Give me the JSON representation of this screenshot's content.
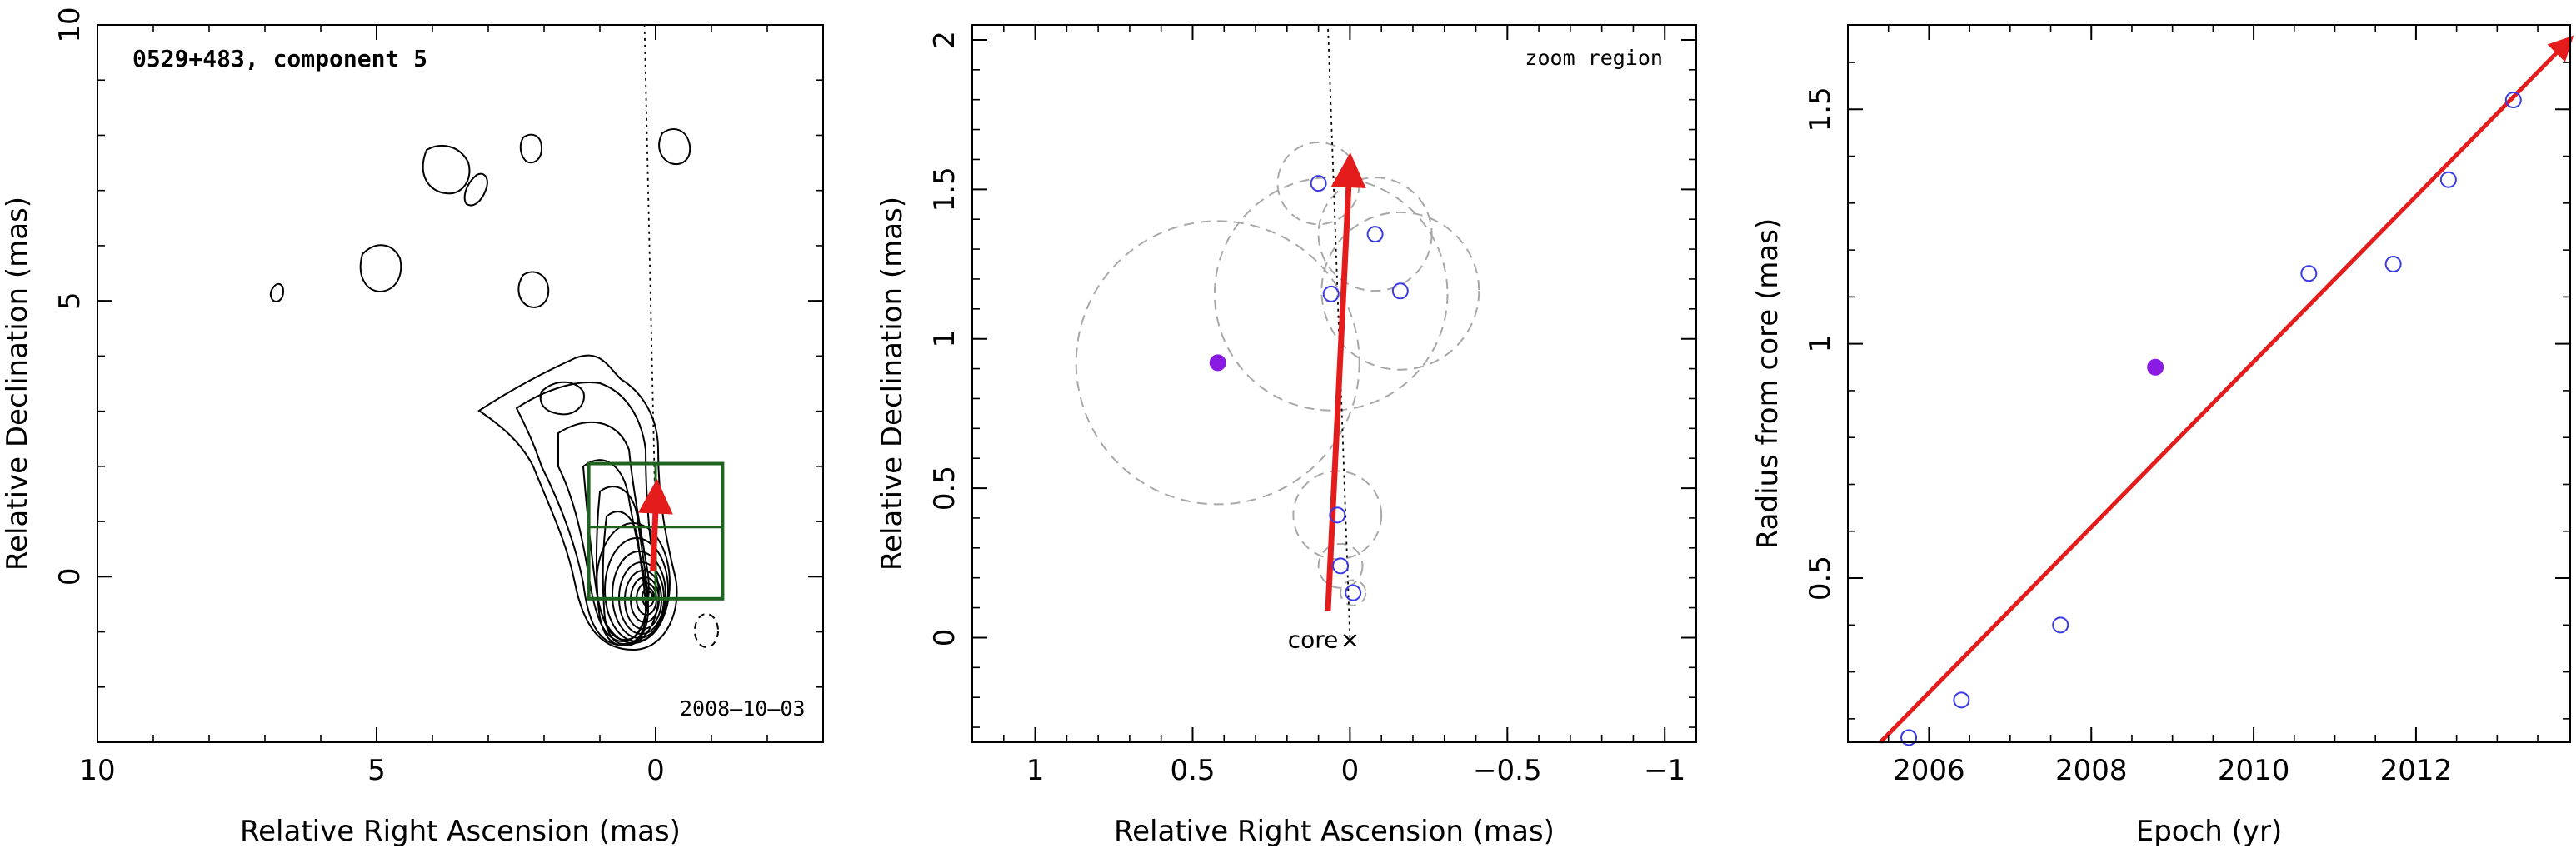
{
  "chart_data": [
    {
      "type": "contour-map",
      "title": "0529+483, component 5",
      "xlabel": "Relative Right Ascension (mas)",
      "ylabel": "Relative Declination (mas)",
      "xlim": [
        10,
        -3
      ],
      "ylim": [
        -3,
        10
      ],
      "xticks": [
        {
          "v": 10,
          "label": "10"
        },
        {
          "v": 5,
          "label": "5"
        },
        {
          "v": 0,
          "label": "0"
        }
      ],
      "yticks": [
        {
          "v": 0,
          "label": "0"
        },
        {
          "v": 5,
          "label": "5"
        },
        {
          "v": 10,
          "label": "10"
        }
      ],
      "date_label": "2008–10–03",
      "contour_color": "#000000",
      "box_color": "#1e641e",
      "arrow_color": "#e51c1c",
      "zoom_box": [
        [
          1.2,
          -0.4
        ],
        [
          -1.2,
          2.05
        ]
      ],
      "zoom_box_dividers": {
        "x": 0,
        "y": 0.9
      },
      "arrow": {
        "from": [
          0.05,
          0.1
        ],
        "to": [
          -0.02,
          1.65
        ]
      },
      "guide_line": {
        "from": [
          0,
          0.9
        ],
        "to": [
          0.2,
          10
        ]
      }
    },
    {
      "type": "scatter",
      "xlabel": "Relative Right Ascension (mas)",
      "ylabel": "Relative Declination (mas)",
      "xlim": [
        1.2,
        -1.1
      ],
      "ylim": [
        -0.35,
        2.05
      ],
      "xticks": [
        {
          "v": 1,
          "label": "1"
        },
        {
          "v": 0.5,
          "label": "0.5"
        },
        {
          "v": 0,
          "label": "0"
        },
        {
          "v": -0.5,
          "label": "−0.5"
        },
        {
          "v": -1,
          "label": "−1"
        }
      ],
      "yticks": [
        {
          "v": 0,
          "label": "0"
        },
        {
          "v": 0.5,
          "label": "0.5"
        },
        {
          "v": 1,
          "label": "1"
        },
        {
          "v": 1.5,
          "label": "1.5"
        },
        {
          "v": 2,
          "label": "2"
        }
      ],
      "annotation": "zoom region",
      "core_label": "core",
      "core_marker": "×",
      "core_pos": [
        0,
        0
      ],
      "point_color": "#3a3ae6",
      "highlight_color": "#8a1be2",
      "circle_color": "#a8a8a8",
      "arrow_color": "#e51c1c",
      "arrow": {
        "from": [
          0.07,
          0.09
        ],
        "to": [
          0.0,
          1.6
        ]
      },
      "guide_line": {
        "from": [
          0,
          0
        ],
        "to": [
          0.07,
          2.05
        ]
      },
      "points": [
        {
          "x": -0.01,
          "y": 0.15,
          "r": 0.04,
          "filled": false
        },
        {
          "x": 0.03,
          "y": 0.24,
          "r": 0.07,
          "filled": false
        },
        {
          "x": 0.04,
          "y": 0.41,
          "r": 0.14,
          "filled": false
        },
        {
          "x": 0.06,
          "y": 1.15,
          "r": 0.37,
          "filled": false
        },
        {
          "x": -0.16,
          "y": 1.16,
          "r": 0.25,
          "filled": false
        },
        {
          "x": -0.08,
          "y": 1.35,
          "r": 0.18,
          "filled": false
        },
        {
          "x": 0.1,
          "y": 1.52,
          "r": 0.13,
          "filled": false
        },
        {
          "x": 0.42,
          "y": 0.92,
          "r": 0.45,
          "filled": true
        }
      ]
    },
    {
      "type": "scatter",
      "xlabel": "Epoch (yr)",
      "ylabel": "Radius from core (mas)",
      "xlim": [
        2005,
        2013.9
      ],
      "ylim": [
        0.15,
        1.68
      ],
      "xticks": [
        {
          "v": 2006,
          "label": "2006"
        },
        {
          "v": 2008,
          "label": "2008"
        },
        {
          "v": 2010,
          "label": "2010"
        },
        {
          "v": 2012,
          "label": "2012"
        }
      ],
      "yticks": [
        {
          "v": 0.5,
          "label": "0.5"
        },
        {
          "v": 1,
          "label": "1"
        },
        {
          "v": 1.5,
          "label": "1.5"
        }
      ],
      "point_color": "#3a3ae6",
      "highlight_color": "#8a1be2",
      "line_color": "#e51c1c",
      "points": [
        {
          "x": 2005.75,
          "y": 0.16,
          "filled": false
        },
        {
          "x": 2006.4,
          "y": 0.24,
          "filled": false
        },
        {
          "x": 2007.62,
          "y": 0.4,
          "filled": false
        },
        {
          "x": 2008.79,
          "y": 0.95,
          "filled": true
        },
        {
          "x": 2010.68,
          "y": 1.15,
          "filled": false
        },
        {
          "x": 2011.72,
          "y": 1.17,
          "filled": false
        },
        {
          "x": 2012.4,
          "y": 1.35,
          "filled": false
        },
        {
          "x": 2013.2,
          "y": 1.52,
          "filled": false
        }
      ],
      "fit": {
        "from": [
          2005.4,
          0.15
        ],
        "to": [
          2013.9,
          1.65
        ]
      }
    }
  ]
}
